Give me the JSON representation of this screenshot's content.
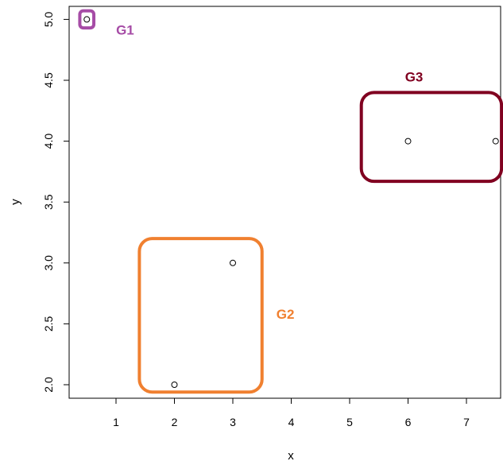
{
  "chart_data": {
    "type": "scatter",
    "xlabel": "x",
    "ylabel": "y",
    "xlim": [
      0.4,
      7.55
    ],
    "ylim": [
      1.95,
      5.05
    ],
    "x_ticks": [
      1,
      2,
      3,
      4,
      5,
      6,
      7
    ],
    "y_ticks": [
      2.0,
      2.5,
      3.0,
      3.5,
      4.0,
      4.5,
      5.0
    ],
    "x_tick_labels": [
      "1",
      "2",
      "3",
      "4",
      "5",
      "6",
      "7"
    ],
    "y_tick_labels": [
      "2.0",
      "2.5",
      "3.0",
      "3.5",
      "4.0",
      "4.5",
      "5.0"
    ],
    "grid": false,
    "points": [
      {
        "x": 0.5,
        "y": 5.0
      },
      {
        "x": 2,
        "y": 2.0
      },
      {
        "x": 3,
        "y": 3.0
      },
      {
        "x": 6,
        "y": 4.0
      },
      {
        "x": 7.5,
        "y": 4.0
      }
    ],
    "groups": [
      {
        "label": "G1",
        "color": "#a64ca6",
        "x_range": [
          0.38,
          0.62
        ],
        "y_range": [
          4.93,
          5.07
        ]
      },
      {
        "label": "G2",
        "color": "#f08030",
        "x_range": [
          1.4,
          3.5
        ],
        "y_range": [
          1.94,
          3.2
        ]
      },
      {
        "label": "G3",
        "color": "#800020",
        "x_range": [
          5.2,
          7.6
        ],
        "y_range": [
          3.67,
          4.4
        ]
      }
    ]
  }
}
